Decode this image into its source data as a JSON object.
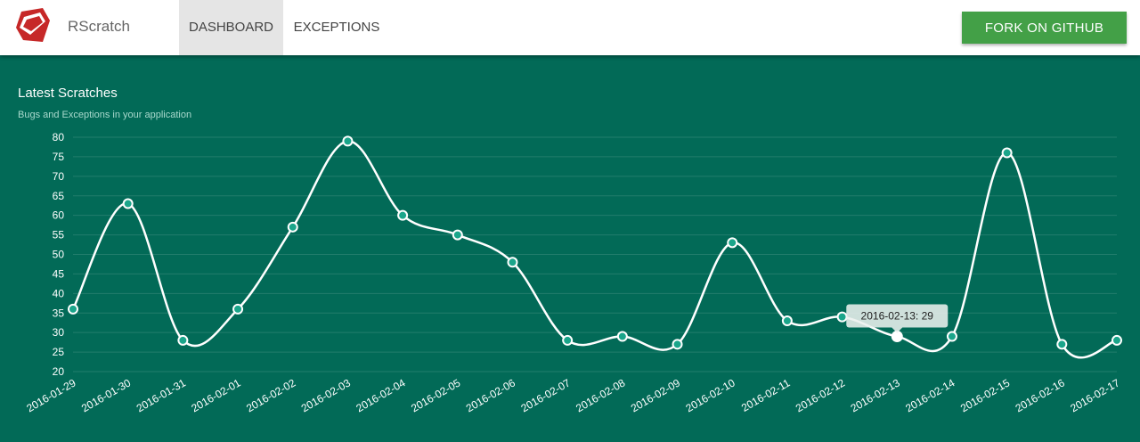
{
  "header": {
    "brand": "RScratch",
    "tabs": [
      {
        "label": "DASHBOARD",
        "active": true
      },
      {
        "label": "EXCEPTIONS",
        "active": false
      }
    ],
    "fork_label": "FORK ON GITHUB"
  },
  "panel": {
    "title": "Latest Scratches",
    "subtitle": "Bugs and Exceptions in your application"
  },
  "colors": {
    "background": "#026a57",
    "line": "#ffffff",
    "point_fill": "#1aa58a",
    "fork_button": "#43a047",
    "logo": "#c62828"
  },
  "tooltip": {
    "text": "2016-02-13: 29",
    "index": 16
  },
  "chart_data": {
    "type": "line",
    "x": [
      "2016-01-29",
      "2016-01-30",
      "2016-01-31",
      "2016-02-01",
      "2016-02-02",
      "2016-02-03",
      "2016-02-04",
      "2016-02-05",
      "2016-02-06",
      "2016-02-07",
      "2016-02-08",
      "2016-02-09",
      "2016-02-10",
      "2016-02-11",
      "2016-02-12",
      "2016-02-13",
      "2016-02-14",
      "2016-02-15",
      "2016-02-16",
      "2016-02-17"
    ],
    "values": [
      36,
      63,
      28,
      36,
      57,
      79,
      60,
      55,
      48,
      28,
      29,
      27,
      53,
      33,
      34,
      29,
      29,
      76,
      27,
      28
    ],
    "yticks": [
      20,
      25,
      30,
      35,
      40,
      45,
      50,
      55,
      60,
      65,
      70,
      75,
      80
    ],
    "ylim": [
      20,
      80
    ],
    "grid": true,
    "curve": "smooth"
  }
}
